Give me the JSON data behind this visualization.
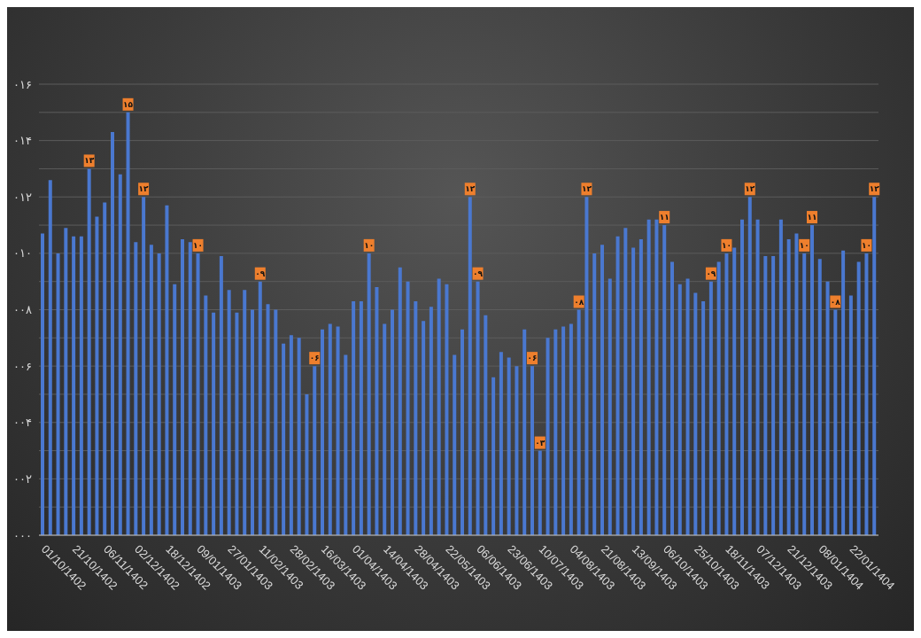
{
  "chart_data": {
    "type": "bar",
    "categories": [
      "01/10/1402",
      null,
      null,
      null,
      "21/10/1402",
      null,
      null,
      null,
      "06/11/1402",
      null,
      null,
      null,
      "02/12/1402",
      null,
      null,
      null,
      "18/12/1402",
      null,
      null,
      null,
      "09/01/1403",
      null,
      null,
      null,
      "27/01/1403",
      null,
      null,
      null,
      "11/02/1403",
      null,
      null,
      null,
      "28/02/1403",
      null,
      null,
      null,
      "16/03/1403",
      null,
      null,
      null,
      "01/04/1403",
      null,
      null,
      null,
      "14/04/1403",
      null,
      null,
      null,
      "28/04/1403",
      null,
      null,
      null,
      "22/05/1403",
      null,
      null,
      null,
      "06/06/1403",
      null,
      null,
      null,
      "23/06/1403",
      null,
      null,
      null,
      "10/07/1403",
      null,
      null,
      null,
      "04/08/1403",
      null,
      null,
      null,
      "21/08/1403",
      null,
      null,
      null,
      "13/09/1403",
      null,
      null,
      null,
      "06/10/1403",
      null,
      null,
      null,
      "25/10/1403",
      null,
      null,
      null,
      "18/11/1403",
      null,
      null,
      null,
      "07/12/1403",
      null,
      null,
      null,
      "21/12/1403",
      null,
      null,
      null,
      "08/01/1404",
      null,
      null,
      null,
      "22/01/1404",
      null,
      null,
      null
    ],
    "values": [
      10.7,
      12.6,
      10.0,
      10.9,
      10.6,
      10.6,
      13,
      11.3,
      11.8,
      14.3,
      12.8,
      15,
      10.4,
      12,
      10.3,
      10.0,
      11.7,
      8.9,
      10.5,
      10.4,
      10,
      8.5,
      7.9,
      9.9,
      8.7,
      7.9,
      8.7,
      8.0,
      9,
      8.2,
      8.0,
      6.8,
      7.1,
      7.0,
      5.0,
      6,
      7.3,
      7.5,
      7.4,
      6.4,
      8.3,
      8.3,
      10,
      8.8,
      7.5,
      8.0,
      9.5,
      9.0,
      8.3,
      7.6,
      8.1,
      9.1,
      8.9,
      6.4,
      7.3,
      12,
      9,
      7.8,
      5.6,
      6.5,
      6.3,
      6.0,
      7.3,
      6,
      3,
      7.0,
      7.3,
      7.4,
      7.5,
      8,
      12,
      10.0,
      10.3,
      9.1,
      10.6,
      10.9,
      10.2,
      10.5,
      11.2,
      11.2,
      11,
      9.7,
      8.9,
      9.1,
      8.6,
      8.3,
      9,
      9.7,
      10,
      10.2,
      11.2,
      12,
      11.2,
      9.9,
      9.9,
      11.2,
      10.5,
      10.7,
      10,
      11,
      9.8,
      9.0,
      8,
      10.1,
      8.5,
      9.7,
      10,
      12
    ],
    "value_labels": [
      null,
      null,
      null,
      null,
      null,
      null,
      "۱۳",
      null,
      null,
      null,
      null,
      "۱۵",
      null,
      "۱۲",
      null,
      null,
      null,
      null,
      null,
      null,
      "۱۰",
      null,
      null,
      null,
      null,
      null,
      null,
      null,
      "۰۹",
      null,
      null,
      null,
      null,
      null,
      null,
      "۰۶",
      null,
      null,
      null,
      null,
      null,
      null,
      "۱۰",
      null,
      null,
      null,
      null,
      null,
      null,
      null,
      null,
      null,
      null,
      null,
      null,
      "۱۲",
      "۰۹",
      null,
      null,
      null,
      null,
      null,
      null,
      "۰۶",
      "۰۳",
      null,
      null,
      null,
      null,
      "۰۸",
      "۱۲",
      null,
      null,
      null,
      null,
      null,
      null,
      null,
      null,
      null,
      "۱۱",
      null,
      null,
      null,
      null,
      null,
      "۰۹",
      null,
      "۱۰",
      null,
      null,
      "۱۲",
      null,
      null,
      null,
      null,
      null,
      null,
      "۱۰",
      "۱۱",
      null,
      null,
      "۰۸",
      null,
      null,
      null,
      "۱۰",
      "۱۲"
    ],
    "color": "#4a78d0",
    "ylim": [
      0,
      16
    ],
    "yticks": [
      {
        "value": 0,
        "label": "۰۰۰"
      },
      {
        "value": 1,
        "label": null
      },
      {
        "value": 2,
        "label": "۰۰۲"
      },
      {
        "value": 3,
        "label": null
      },
      {
        "value": 4,
        "label": "۰۰۴"
      },
      {
        "value": 5,
        "label": null
      },
      {
        "value": 6,
        "label": "۰۰۶"
      },
      {
        "value": 7,
        "label": null
      },
      {
        "value": 8,
        "label": "۰۰۸"
      },
      {
        "value": 9,
        "label": null
      },
      {
        "value": 10,
        "label": "۰۱۰"
      },
      {
        "value": 11,
        "label": null
      },
      {
        "value": 12,
        "label": "۰۱۲"
      },
      {
        "value": 13,
        "label": null
      },
      {
        "value": 14,
        "label": "۰۱۴"
      },
      {
        "value": 15,
        "label": null
      },
      {
        "value": 16,
        "label": "۰۱۶"
      }
    ],
    "grid": "y"
  }
}
